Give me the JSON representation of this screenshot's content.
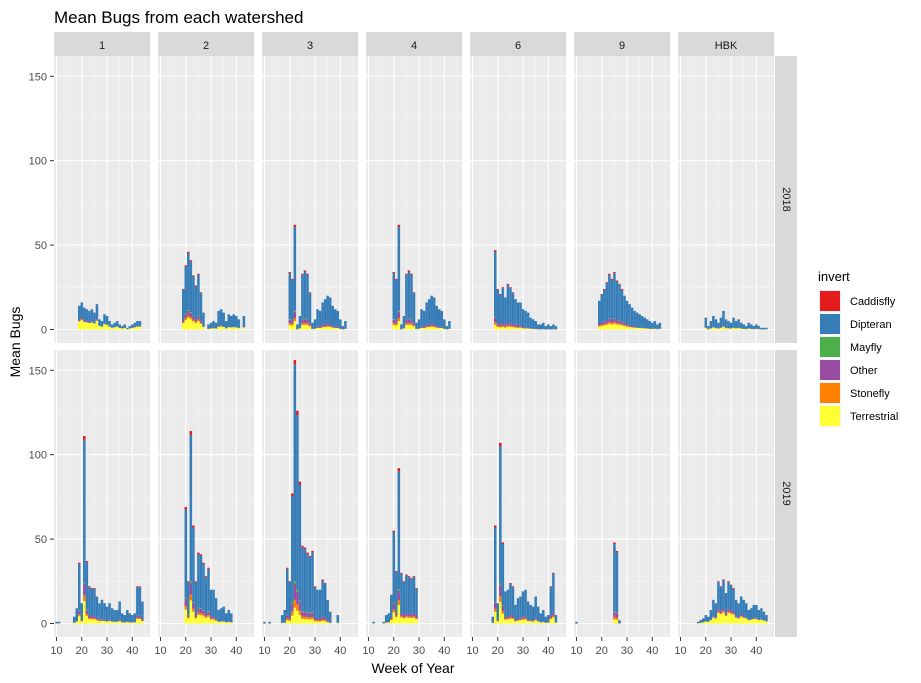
{
  "chart_data": {
    "type": "bar",
    "stacked": true,
    "title": "Mean Bugs from each watershed",
    "xlabel": "Week of Year",
    "ylabel": "Mean Bugs",
    "xlim": [
      9,
      47
    ],
    "ylim": [
      -8,
      162
    ],
    "xticks": [
      10,
      20,
      30,
      40
    ],
    "yticks": [
      0,
      50,
      100,
      150
    ],
    "grid": true,
    "legend": {
      "title": "invert",
      "position": "right"
    },
    "facet_columns": [
      "1",
      "2",
      "3",
      "4",
      "6",
      "9",
      "HBK"
    ],
    "facet_rows": [
      "2018",
      "2019"
    ],
    "series_order": [
      "Terrestrial",
      "Stonefly",
      "Other",
      "Mayfly",
      "Dipteran",
      "Caddisfly"
    ],
    "series": [
      {
        "name": "Caddisfly",
        "color": "#E41A1C"
      },
      {
        "name": "Dipteran",
        "color": "#377EB8"
      },
      {
        "name": "Mayfly",
        "color": "#4DAF4A"
      },
      {
        "name": "Other",
        "color": "#984EA3"
      },
      {
        "name": "Stonefly",
        "color": "#FF7F00"
      },
      {
        "name": "Terrestrial",
        "color": "#FFFF33"
      }
    ],
    "panels": [
      {
        "column": "1",
        "row": "2018",
        "x": [
          19,
          20,
          21,
          22,
          23,
          24,
          25,
          26,
          27,
          28,
          29,
          30,
          31,
          32,
          33,
          34,
          35,
          36,
          37,
          38,
          39,
          40,
          41,
          42,
          43
        ],
        "totals": [
          14,
          16,
          13,
          12,
          11,
          12,
          10,
          15,
          6,
          5,
          9,
          8,
          5,
          3,
          4,
          5,
          3,
          2,
          3,
          1,
          2,
          3,
          4,
          5,
          5
        ],
        "terrestrial": 0.35
      },
      {
        "column": "2",
        "row": "2018",
        "x": [
          19,
          20,
          21,
          22,
          23,
          24,
          25,
          26,
          27,
          28,
          29,
          30,
          31,
          32,
          33,
          34,
          35,
          36,
          37,
          38,
          39,
          40,
          41,
          42,
          43
        ],
        "totals": [
          24,
          38,
          46,
          41,
          32,
          26,
          33,
          22,
          10,
          0,
          3,
          4,
          5,
          4,
          11,
          12,
          10,
          5,
          9,
          8,
          9,
          8,
          6,
          0,
          8
        ],
        "terrestrial": 0.15
      },
      {
        "column": "3",
        "row": "2018",
        "x": [
          19,
          20,
          21,
          22,
          23,
          24,
          25,
          26,
          27,
          28,
          29,
          30,
          31,
          32,
          33,
          34,
          35,
          36,
          37,
          38,
          39,
          40,
          41,
          42,
          43
        ],
        "totals": [
          0,
          34,
          30,
          62,
          3,
          8,
          33,
          35,
          33,
          22,
          4,
          6,
          12,
          11,
          16,
          18,
          20,
          19,
          14,
          12,
          11,
          6,
          2,
          5,
          0
        ],
        "terrestrial": 0.08
      },
      {
        "column": "4",
        "row": "2018",
        "x": [
          19,
          20,
          21,
          22,
          23,
          24,
          25,
          26,
          27,
          28,
          29,
          30,
          31,
          32,
          33,
          34,
          35,
          36,
          37,
          38,
          39,
          40,
          41,
          42,
          43
        ],
        "totals": [
          0,
          34,
          30,
          62,
          3,
          8,
          33,
          35,
          33,
          22,
          4,
          6,
          12,
          11,
          16,
          18,
          20,
          19,
          14,
          12,
          11,
          6,
          2,
          5,
          0
        ],
        "terrestrial": 0.08
      },
      {
        "column": "6",
        "row": "2018",
        "x": [
          19,
          20,
          21,
          22,
          23,
          24,
          25,
          26,
          27,
          28,
          29,
          30,
          31,
          32,
          33,
          34,
          35,
          36,
          37,
          38,
          39,
          40,
          41,
          42,
          43
        ],
        "totals": [
          47,
          24,
          21,
          25,
          19,
          27,
          25,
          22,
          18,
          16,
          16,
          12,
          11,
          10,
          7,
          6,
          5,
          3,
          3,
          4,
          2,
          3,
          2,
          3,
          2
        ],
        "terrestrial": 0.06
      },
      {
        "column": "9",
        "row": "2018",
        "x": [
          19,
          20,
          21,
          22,
          23,
          24,
          25,
          26,
          27,
          28,
          29,
          30,
          31,
          32,
          33,
          34,
          35,
          36,
          37,
          38,
          39,
          40,
          41,
          42,
          43
        ],
        "totals": [
          17,
          21,
          24,
          28,
          33,
          30,
          34,
          29,
          27,
          24,
          20,
          17,
          15,
          13,
          11,
          10,
          9,
          8,
          7,
          6,
          5,
          4,
          5,
          3,
          4
        ],
        "terrestrial": 0.1
      },
      {
        "column": "HBK",
        "row": "2018",
        "x": [
          20,
          21,
          22,
          23,
          24,
          25,
          26,
          27,
          28,
          29,
          30,
          31,
          32,
          33,
          34,
          35,
          36,
          37,
          38,
          39,
          40,
          41,
          42,
          43,
          44
        ],
        "totals": [
          7,
          2,
          5,
          8,
          6,
          4,
          7,
          11,
          6,
          5,
          4,
          7,
          5,
          6,
          4,
          3,
          2,
          4,
          3,
          2,
          3,
          2,
          1,
          1,
          1
        ],
        "terrestrial": 0.15
      },
      {
        "column": "1",
        "row": "2019",
        "x": [
          10,
          11,
          12,
          13,
          14,
          15,
          16,
          17,
          18,
          19,
          20,
          21,
          22,
          23,
          24,
          25,
          26,
          27,
          28,
          29,
          30,
          31,
          32,
          33,
          34,
          35,
          36,
          37,
          38,
          39,
          40,
          41,
          42,
          43,
          44,
          45
        ],
        "totals": [
          1,
          1,
          0,
          0,
          0,
          0,
          0,
          4,
          9,
          36,
          12,
          111,
          37,
          22,
          21,
          21,
          16,
          12,
          14,
          12,
          10,
          12,
          9,
          8,
          8,
          13,
          6,
          5,
          8,
          6,
          5,
          6,
          22,
          22,
          13,
          0
        ],
        "terrestrial": 0.12
      },
      {
        "column": "2",
        "row": "2019",
        "x": [
          10,
          11,
          12,
          13,
          14,
          15,
          16,
          17,
          18,
          19,
          20,
          21,
          22,
          23,
          24,
          25,
          26,
          27,
          28,
          29,
          30,
          31,
          32,
          33,
          34,
          35,
          36,
          37,
          38,
          39,
          40,
          41,
          42,
          43,
          44,
          45
        ],
        "totals": [
          0,
          0,
          0,
          0,
          0,
          0,
          0,
          0,
          0,
          0,
          69,
          25,
          114,
          58,
          25,
          42,
          41,
          36,
          28,
          33,
          20,
          20,
          15,
          8,
          9,
          10,
          6,
          8,
          6,
          0,
          0,
          0,
          0,
          0,
          0,
          0
        ],
        "terrestrial": 0.12
      },
      {
        "column": "3",
        "row": "2019",
        "x": [
          10,
          11,
          12,
          13,
          14,
          15,
          16,
          17,
          18,
          19,
          20,
          21,
          22,
          23,
          24,
          25,
          26,
          27,
          28,
          29,
          30,
          31,
          32,
          33,
          34,
          35,
          36,
          37,
          38,
          39,
          40,
          41,
          42,
          43,
          44,
          45
        ],
        "totals": [
          1,
          0,
          1,
          0,
          0,
          0,
          0,
          5,
          8,
          33,
          25,
          77,
          156,
          126,
          84,
          46,
          45,
          42,
          40,
          43,
          22,
          20,
          20,
          26,
          24,
          14,
          7,
          0,
          0,
          5,
          0,
          0,
          0,
          0,
          0,
          0
        ],
        "terrestrial": 0.06
      },
      {
        "column": "4",
        "row": "2019",
        "x": [
          10,
          11,
          12,
          13,
          14,
          15,
          16,
          17,
          18,
          19,
          20,
          21,
          22,
          23,
          24,
          25,
          26,
          27,
          28,
          29,
          30,
          31,
          32,
          33,
          34,
          35,
          36,
          37,
          38,
          39,
          40,
          41,
          42,
          43,
          44,
          45
        ],
        "totals": [
          0,
          0,
          1,
          0,
          0,
          0,
          1,
          5,
          6,
          17,
          55,
          31,
          92,
          30,
          25,
          29,
          28,
          27,
          28,
          21,
          0,
          0,
          0,
          0,
          0,
          0,
          0,
          0,
          0,
          0,
          0,
          0,
          0,
          0,
          0,
          0
        ],
        "terrestrial": 0.12
      },
      {
        "column": "6",
        "row": "2019",
        "x": [
          10,
          11,
          12,
          13,
          14,
          15,
          16,
          17,
          18,
          19,
          20,
          21,
          22,
          23,
          24,
          25,
          26,
          27,
          28,
          29,
          30,
          31,
          32,
          33,
          34,
          35,
          36,
          37,
          38,
          39,
          40,
          41,
          42,
          43,
          44,
          45
        ],
        "totals": [
          0,
          0,
          0,
          0,
          0,
          0,
          0,
          0,
          4,
          58,
          12,
          107,
          48,
          19,
          20,
          24,
          22,
          11,
          15,
          16,
          19,
          20,
          13,
          11,
          10,
          16,
          10,
          6,
          8,
          4,
          5,
          22,
          30,
          5,
          0,
          0
        ],
        "terrestrial": 0.12
      },
      {
        "column": "9",
        "row": "2019",
        "x": [
          10,
          11,
          12,
          13,
          14,
          15,
          16,
          17,
          18,
          19,
          20,
          21,
          22,
          23,
          24,
          25,
          26,
          27,
          28,
          29,
          30,
          31,
          32,
          33,
          34,
          35,
          36,
          37,
          38,
          39,
          40,
          41,
          42,
          43,
          44,
          45
        ],
        "totals": [
          1,
          0,
          0,
          0,
          0,
          0,
          0,
          0,
          0,
          0,
          0,
          0,
          0,
          0,
          0,
          48,
          43,
          2,
          0,
          0,
          0,
          0,
          0,
          0,
          0,
          0,
          0,
          0,
          0,
          0,
          0,
          0,
          0,
          0,
          0,
          0
        ],
        "terrestrial": 0.05
      },
      {
        "column": "HBK",
        "row": "2019",
        "x": [
          10,
          11,
          12,
          13,
          14,
          15,
          16,
          17,
          18,
          19,
          20,
          21,
          22,
          23,
          24,
          25,
          26,
          27,
          28,
          29,
          30,
          31,
          32,
          33,
          34,
          35,
          36,
          37,
          38,
          39,
          40,
          41,
          42,
          43,
          44,
          45
        ],
        "totals": [
          0,
          0,
          0,
          0,
          0,
          0,
          0,
          1,
          2,
          3,
          5,
          4,
          8,
          14,
          12,
          25,
          22,
          26,
          18,
          25,
          23,
          21,
          14,
          12,
          16,
          14,
          12,
          8,
          9,
          11,
          11,
          8,
          9,
          7,
          5,
          0
        ],
        "terrestrial": 0.25
      }
    ]
  }
}
